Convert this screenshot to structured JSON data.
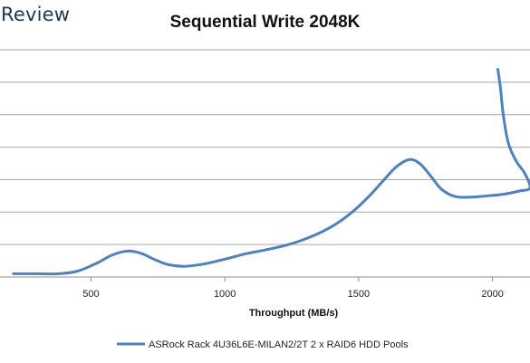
{
  "brand": "Review",
  "colors": {
    "series": "#4f81bd",
    "grid": "#a6a6a6",
    "axis": "#8c8c8c"
  },
  "chart_data": {
    "type": "line",
    "title": "Sequential Write 2048K",
    "xlabel": "Throughput (MB/s)",
    "ylabel": "",
    "x_ticks": [
      500,
      1000,
      1500,
      2000
    ],
    "xlim": [
      160,
      2140
    ],
    "ylim": [
      0,
      7
    ],
    "grid": true,
    "legend_position": "bottom",
    "series": [
      {
        "name": "ASRock Rack 4U36L6E-MILAN2/2T 2 x RAID6 HDD Pools",
        "x": [
          210,
          300,
          380,
          450,
          520,
          580,
          640,
          690,
          740,
          790,
          850,
          920,
          1000,
          1080,
          1150,
          1220,
          1290,
          1360,
          1420,
          1480,
          1540,
          1590,
          1640,
          1690,
          1730,
          1770,
          1810,
          1860,
          1920,
          1980,
          2040,
          2100,
          2140,
          2120,
          2090,
          2060,
          2040,
          2030,
          2020
        ],
        "y": [
          0.1,
          0.1,
          0.1,
          0.18,
          0.42,
          0.68,
          0.8,
          0.72,
          0.53,
          0.38,
          0.33,
          0.4,
          0.55,
          0.72,
          0.83,
          0.96,
          1.14,
          1.38,
          1.66,
          2.03,
          2.5,
          2.95,
          3.39,
          3.62,
          3.48,
          3.1,
          2.7,
          2.48,
          2.46,
          2.5,
          2.55,
          2.65,
          2.75,
          3.2,
          3.55,
          4.1,
          5.0,
          5.8,
          6.4
        ]
      }
    ]
  }
}
